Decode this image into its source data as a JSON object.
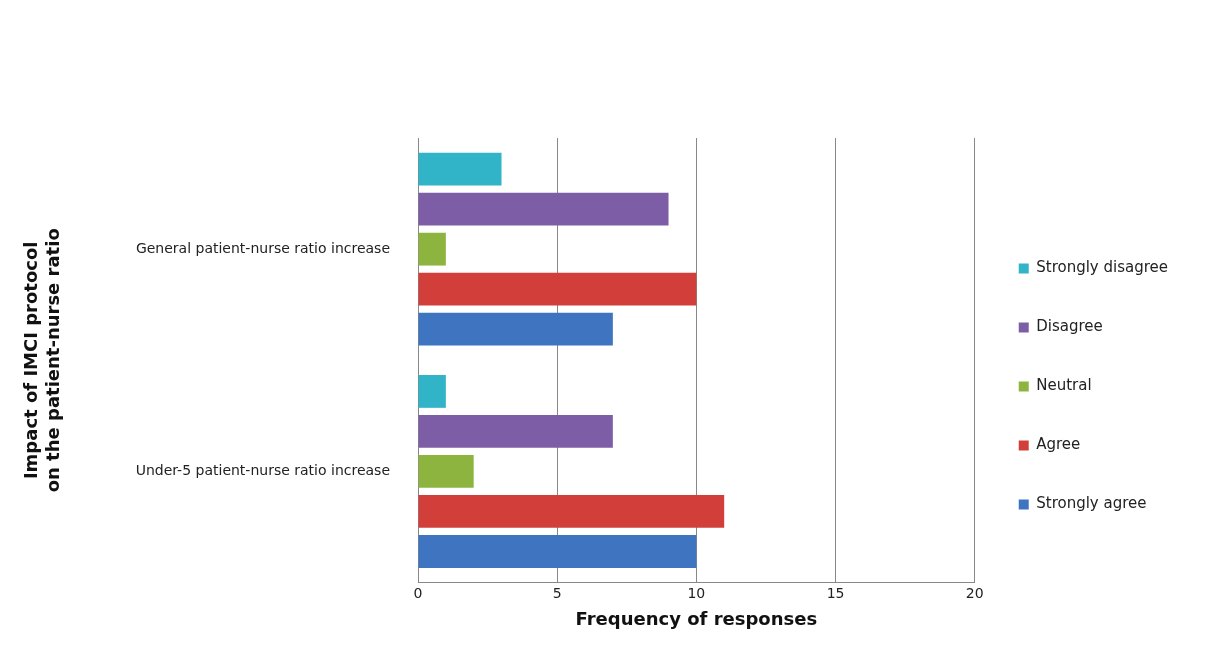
{
  "chart_data": {
    "type": "bar",
    "orientation": "horizontal",
    "xlabel": "Frequency of responses",
    "ylabel": "Impact of IMCI protocol on the patient-nurse ratio",
    "categories": [
      "General patient-nurse ratio increase",
      "Under-5 patient-nurse ratio increase"
    ],
    "series": [
      {
        "name": "Strongly disagree",
        "color": "#31b3c8",
        "values": [
          3,
          1
        ]
      },
      {
        "name": "Disagree",
        "color": "#7d5ea6",
        "values": [
          9,
          7
        ]
      },
      {
        "name": "Neutral",
        "color": "#8db43f",
        "values": [
          1,
          2
        ]
      },
      {
        "name": "Agree",
        "color": "#d23f3b",
        "values": [
          10,
          11
        ]
      },
      {
        "name": "Strongly agree",
        "color": "#3f74c0",
        "values": [
          7,
          10
        ]
      }
    ],
    "xlim": [
      0,
      20
    ],
    "xticks": [
      0,
      5,
      10,
      15,
      20
    ],
    "grid": "x",
    "legend": "right"
  }
}
